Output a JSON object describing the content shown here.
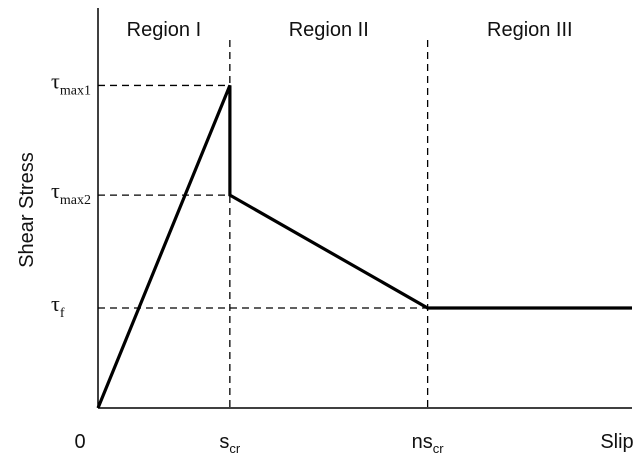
{
  "chart_data": {
    "type": "line",
    "title": "",
    "ylabel": "Shear Stress",
    "grid": false,
    "legend": "none",
    "x_ticks": [
      {
        "key": "zero",
        "x": 0,
        "base": "0",
        "sub": ""
      },
      {
        "key": "scr",
        "x": 1,
        "base": "s",
        "sub": "cr"
      },
      {
        "key": "nscr",
        "x": 2.5,
        "base": "ns",
        "sub": "cr"
      },
      {
        "key": "slip",
        "x": 4,
        "base": "Slip",
        "sub": ""
      }
    ],
    "y_ticks": [
      {
        "key": "tmax1",
        "y": 1.0,
        "base": "τ",
        "sub": "max1"
      },
      {
        "key": "tmax2",
        "y": 0.66,
        "base": "τ",
        "sub": "max2"
      },
      {
        "key": "tf",
        "y": 0.31,
        "base": "τ",
        "sub": "f"
      }
    ],
    "regions": [
      {
        "label": "Region I",
        "x0": 0,
        "x1": 1
      },
      {
        "label": "Region II",
        "x0": 1,
        "x1": 2.5
      },
      {
        "label": "Region III",
        "x0": 2.5,
        "x1": 4.05
      }
    ],
    "series": [
      {
        "points": [
          [
            0,
            0
          ],
          [
            1,
            1.0
          ],
          [
            1,
            0.66
          ],
          [
            2.5,
            0.31
          ],
          [
            4.05,
            0.31
          ]
        ]
      }
    ],
    "xlim": [
      0,
      4.05
    ],
    "ylim": [
      0,
      1.24
    ],
    "line_color": "#000000"
  }
}
